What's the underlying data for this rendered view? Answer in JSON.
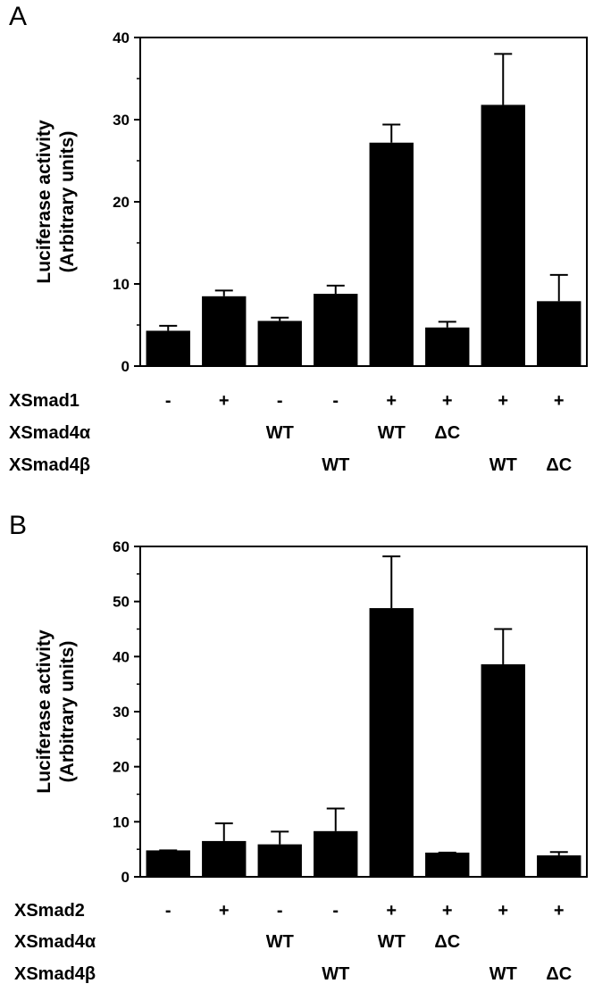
{
  "chart_data": [
    {
      "type": "bar",
      "panel": "A",
      "ylabel": "Luciferase activity",
      "ylabel_sub": "(Arbitrary units)",
      "ylim": [
        0,
        40
      ],
      "yticks": [
        0,
        10,
        20,
        30,
        40
      ],
      "values": [
        4.3,
        8.5,
        5.5,
        8.8,
        27.2,
        4.7,
        31.8,
        7.9
      ],
      "errors": [
        0.6,
        0.7,
        0.4,
        1.0,
        2.2,
        0.7,
        6.2,
        3.2
      ],
      "condition_rows": [
        {
          "name": "XSmad1",
          "cells": [
            "-",
            "+",
            "-",
            "-",
            "+",
            "+",
            "+",
            "+"
          ]
        },
        {
          "name": "XSmad4α",
          "cells": [
            "",
            "",
            "WT",
            "",
            "WT",
            "ΔC",
            "",
            ""
          ]
        },
        {
          "name": "XSmad4β",
          "cells": [
            "",
            "",
            "",
            "WT",
            "",
            "",
            "WT",
            "ΔC"
          ]
        }
      ]
    },
    {
      "type": "bar",
      "panel": "B",
      "ylabel": "Luciferase activity",
      "ylabel_sub": "(Arbitrary units)",
      "ylim": [
        0,
        60
      ],
      "yticks": [
        0,
        10,
        20,
        30,
        40,
        50,
        60
      ],
      "values": [
        4.8,
        6.5,
        5.9,
        8.3,
        48.8,
        4.4,
        38.6,
        3.9
      ],
      "errors": [
        0.0,
        3.2,
        2.3,
        4.1,
        9.4,
        0.0,
        6.4,
        0.6
      ],
      "condition_rows": [
        {
          "name": "XSmad2",
          "cells": [
            "-",
            "+",
            "-",
            "-",
            "+",
            "+",
            "+",
            "+"
          ]
        },
        {
          "name": "XSmad4α",
          "cells": [
            "",
            "",
            "WT",
            "",
            "WT",
            "ΔC",
            "",
            ""
          ]
        },
        {
          "name": "XSmad4β",
          "cells": [
            "",
            "",
            "",
            "WT",
            "",
            "",
            "WT",
            "ΔC"
          ]
        }
      ]
    }
  ]
}
